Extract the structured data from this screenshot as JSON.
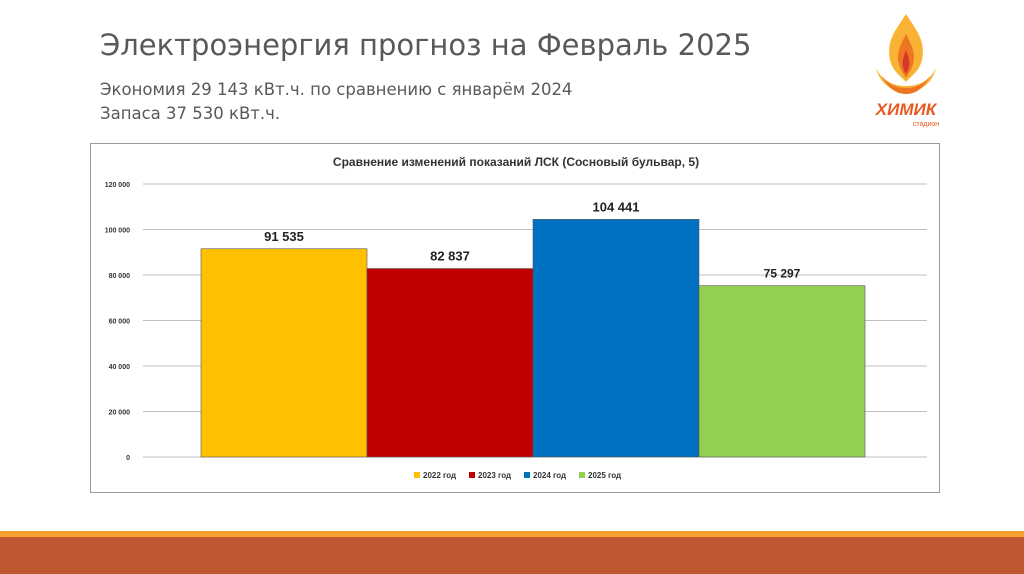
{
  "slide": {
    "title": "Электроэнергия прогноз на Февраль 2025",
    "line1": "Экономия 29 143 кВт.ч. по сравнению с январём 2024",
    "line2": "Запаса 37 530 кВт.ч."
  },
  "logo": {
    "text": "ХИМИК",
    "subtext": "стадион",
    "icon": "flame-logo-icon",
    "colors": {
      "flame_yellow": "#f9b233",
      "flame_orange": "#ee7623",
      "flame_red": "#d6392b",
      "text": "#e8591f"
    }
  },
  "chart_data": {
    "type": "bar",
    "title": "Сравнение изменений показаний ЛСК (Сосновый бульвар, 5)",
    "categories": [
      "2022 год",
      "2023 год",
      "2024 год",
      "2025 год"
    ],
    "values": [
      91535,
      82837,
      104441,
      75297
    ],
    "value_labels": [
      "91 535",
      "82 837",
      "104 441",
      "75 297"
    ],
    "colors": [
      "#ffc000",
      "#c00000",
      "#0070c0",
      "#92d050"
    ],
    "ylim": [
      0,
      120000
    ],
    "yticks": [
      0,
      20000,
      40000,
      60000,
      80000,
      100000,
      120000
    ],
    "ytick_labels": [
      "0",
      "20 000",
      "40 000",
      "60 000",
      "80 000",
      "100 000",
      "120 000"
    ],
    "grid": true,
    "legend": "bottom",
    "xlabel": "",
    "ylabel": ""
  },
  "theme": {
    "band_top": "#f6a12f",
    "band_bottom": "#bf5730"
  }
}
